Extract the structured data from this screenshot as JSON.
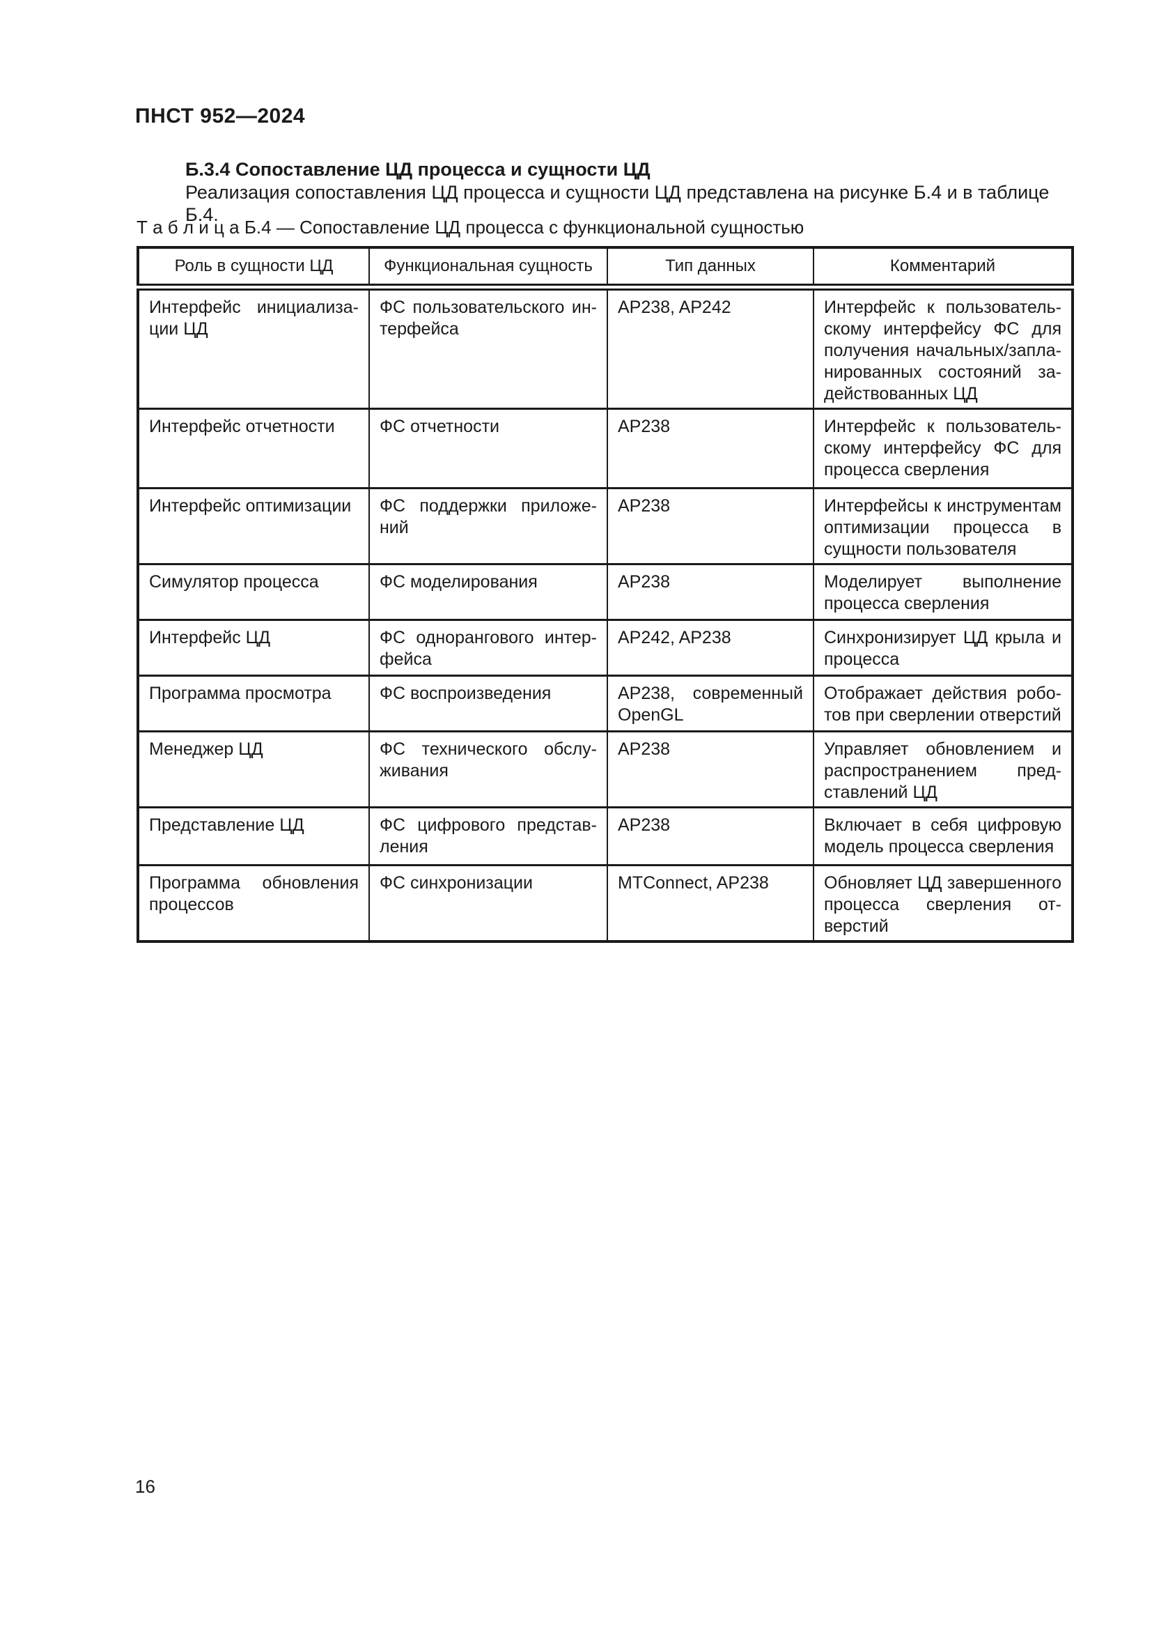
{
  "page": {
    "running_header": "ПНСТ 952—2024",
    "page_number": "16"
  },
  "section": {
    "heading": "Б.3.4 Сопоставление ЦД процесса и сущности ЦД",
    "paragraph": "Реализация сопоставления ЦД процесса и сущности ЦД представлена на рисунке Б.4 и в таблице Б.4."
  },
  "table": {
    "caption": "Т а б л и ц а   Б.4 — Сопоставление ЦД процесса с функциональной сущностью",
    "columns": [
      "Роль в сущности ЦД",
      "Функциональная сущность",
      "Тип данных",
      "Комментарий"
    ],
    "rows": [
      {
        "role": "Интерфейс инициализа­ции ЦД",
        "entity": "ФС пользовательского ин­терфейса",
        "datatype": "AP238, AP242",
        "comment": "Интерфейс к пользователь­скому интерфейсу ФС для получения начальных/запла­нированных состояний за­действованных ЦД"
      },
      {
        "role": "Интерфейс отчетности",
        "entity": "ФС отчетности",
        "datatype": "AP238",
        "comment": "Интерфейс к пользователь­скому интерфейсу ФС для процесса сверления"
      },
      {
        "role": "Интерфейс оптимизации",
        "entity": "ФС поддержки приложе­ний",
        "datatype": "AP238",
        "comment": "Интерфейсы к инструмен­там оптимизации процесса в сущности пользователя"
      },
      {
        "role": "Симулятор процесса",
        "entity": "ФС моделирования",
        "datatype": "AP238",
        "comment": "Моделирует выполнение процесса сверления"
      },
      {
        "role": "Интерфейс ЦД",
        "entity": "ФС однорангового интер­фейса",
        "datatype": "AP242, AP238",
        "comment": "Синхронизирует ЦД крыла и процесса"
      },
      {
        "role": "Программа просмотра",
        "entity": "ФС воспроизведения",
        "datatype": "AP238, современный OpenGL",
        "comment": "Отображает действия робо­тов при сверлении отверстий"
      },
      {
        "role": "Менеджер ЦД",
        "entity": "ФС технического обслу­живания",
        "datatype": "AP238",
        "comment": "Управляет обновлением и распространением пред­ставлений ЦД"
      },
      {
        "role": "Представление ЦД",
        "entity": "ФС цифрового представ­ления",
        "datatype": "AP238",
        "comment": "Включает в себя цифровую модель процесса сверления"
      },
      {
        "role": "Программа обновления процессов",
        "entity": "ФС синхронизации",
        "datatype": "MTConnect, AP238",
        "comment": "Обновляет ЦД завершенно­го процесса сверления от­верстий"
      }
    ]
  },
  "colors": {
    "text": "#1a1a1a",
    "border": "#1a1a1a",
    "background": "#ffffff"
  }
}
